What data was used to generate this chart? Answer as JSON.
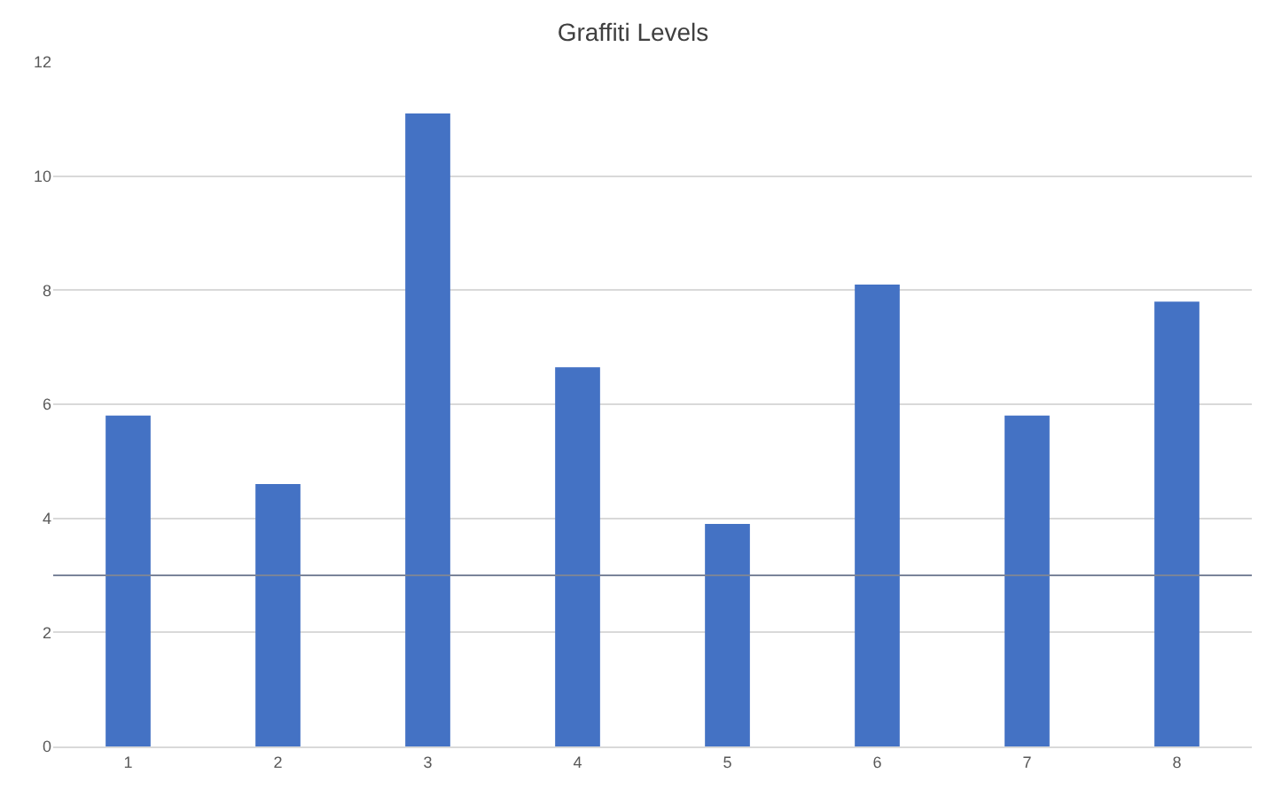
{
  "chart_data": {
    "type": "bar",
    "title": "Graffiti Levels",
    "categories": [
      "1",
      "2",
      "3",
      "4",
      "5",
      "6",
      "7",
      "8"
    ],
    "values": [
      5.8,
      4.6,
      11.1,
      6.65,
      3.9,
      8.1,
      5.8,
      7.8
    ],
    "color": "#4472c4",
    "ylim": [
      0,
      12
    ],
    "yticks": [
      0,
      2,
      4,
      6,
      8,
      10,
      12
    ],
    "grid": "y",
    "ref_lines": [
      {
        "axis": "y",
        "value": 3,
        "color": "#7a8499"
      }
    ]
  }
}
